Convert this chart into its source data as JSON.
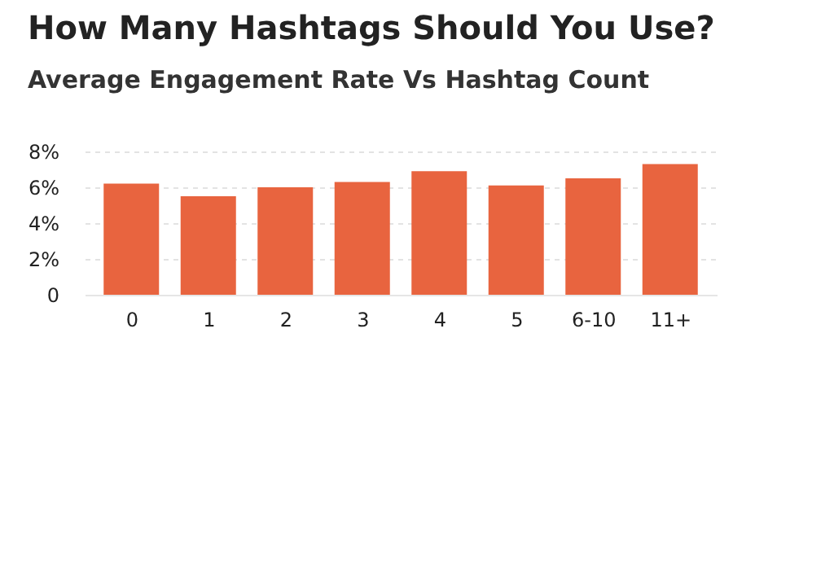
{
  "chart_data": {
    "type": "bar",
    "title": "How Many Hashtags Should You Use?",
    "subtitle": "Average Engagement Rate Vs Hashtag Count",
    "categories": [
      "0",
      "1",
      "2",
      "3",
      "4",
      "5",
      "6-10",
      "11+"
    ],
    "values": [
      6.2,
      5.5,
      6.0,
      6.3,
      6.9,
      6.1,
      6.5,
      7.3
    ],
    "color": "#e8643f",
    "ylim": [
      0,
      8
    ],
    "yticks": [
      0,
      {
        "value": 2,
        "label": "2%"
      },
      {
        "value": 4,
        "label": "4%"
      },
      {
        "value": 6,
        "label": "6%"
      },
      {
        "value": 8,
        "label": "8%"
      }
    ],
    "grid": "y"
  }
}
